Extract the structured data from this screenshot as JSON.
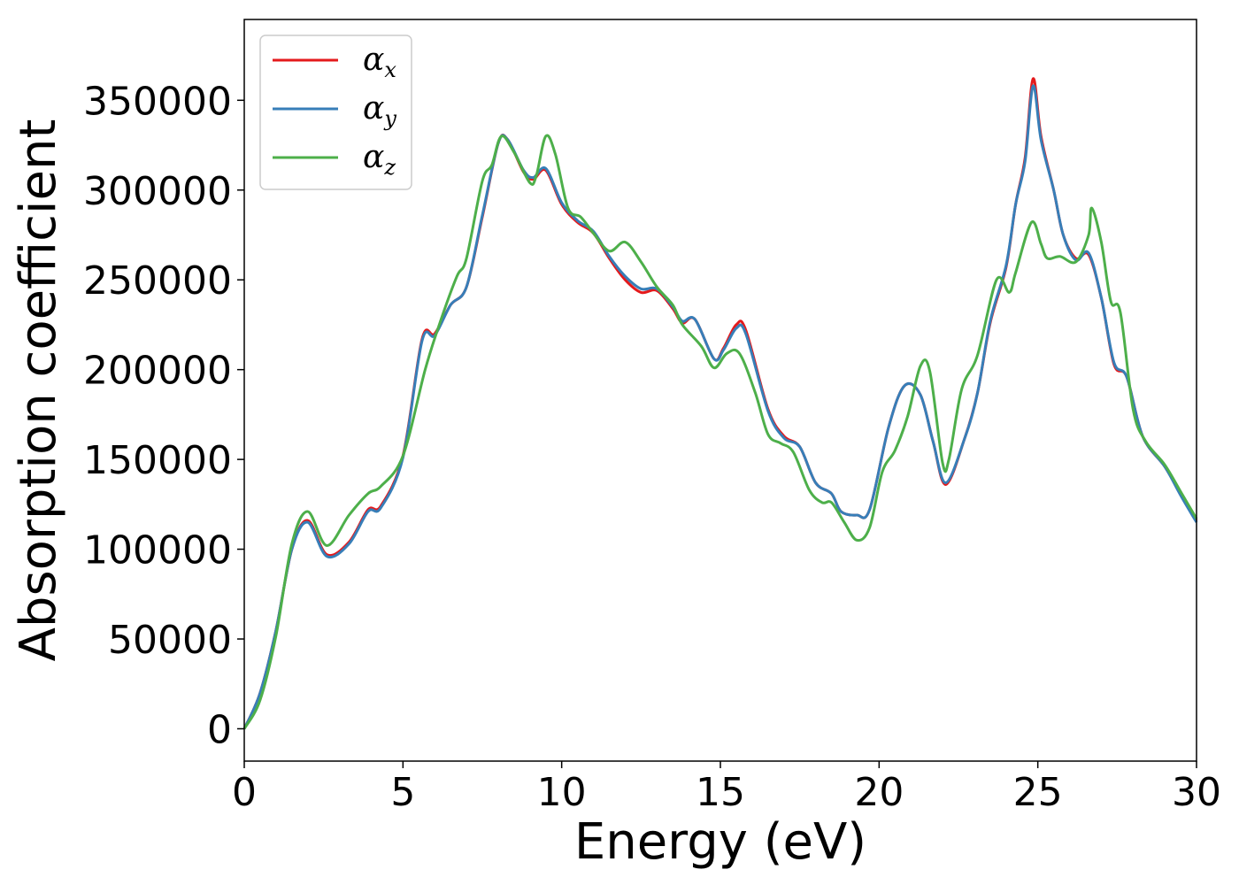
{
  "chart_data": {
    "type": "line",
    "title": "",
    "xlabel": "Energy (eV)",
    "ylabel": "Absorption coefficient",
    "xlim": [
      0,
      30
    ],
    "ylim": [
      -18000,
      395000
    ],
    "xticks": [
      0,
      5,
      10,
      15,
      20,
      25,
      30
    ],
    "xtick_labels": [
      "0",
      "5",
      "10",
      "15",
      "20",
      "25",
      "30"
    ],
    "yticks": [
      0,
      50000,
      100000,
      150000,
      200000,
      250000,
      300000,
      350000
    ],
    "ytick_labels": [
      "0",
      "50000",
      "100000",
      "150000",
      "200000",
      "250000",
      "300000",
      "350000"
    ],
    "grid": false,
    "legend_position": "top-left",
    "series": [
      {
        "name": "α",
        "subscript": "x",
        "color": "#e41a1c",
        "points": [
          [
            0,
            0
          ],
          [
            0.5,
            20000
          ],
          [
            1,
            55000
          ],
          [
            1.5,
            100000
          ],
          [
            2,
            116000
          ],
          [
            2.6,
            97000
          ],
          [
            3.3,
            104000
          ],
          [
            3.9,
            122000
          ],
          [
            4.3,
            124000
          ],
          [
            5,
            152000
          ],
          [
            5.6,
            217000
          ],
          [
            6,
            220000
          ],
          [
            6.5,
            236000
          ],
          [
            7,
            246000
          ],
          [
            7.5,
            285000
          ],
          [
            8,
            326000
          ],
          [
            8.3,
            328000
          ],
          [
            8.8,
            310000
          ],
          [
            9.1,
            306000
          ],
          [
            9.5,
            311000
          ],
          [
            10,
            292000
          ],
          [
            10.5,
            282000
          ],
          [
            11,
            276000
          ],
          [
            11.5,
            262000
          ],
          [
            12,
            250000
          ],
          [
            12.5,
            243000
          ],
          [
            13,
            244000
          ],
          [
            13.5,
            234000
          ],
          [
            13.8,
            226000
          ],
          [
            14.2,
            228000
          ],
          [
            14.8,
            206000
          ],
          [
            15.1,
            212000
          ],
          [
            15.5,
            225000
          ],
          [
            15.8,
            222000
          ],
          [
            16.5,
            178000
          ],
          [
            17,
            163000
          ],
          [
            17.5,
            157000
          ],
          [
            18,
            137000
          ],
          [
            18.5,
            131000
          ],
          [
            18.8,
            121000
          ],
          [
            19.3,
            119000
          ],
          [
            19.7,
            122000
          ],
          [
            20.3,
            168000
          ],
          [
            20.8,
            191000
          ],
          [
            21.3,
            186000
          ],
          [
            21.7,
            160000
          ],
          [
            22.1,
            136000
          ],
          [
            22.7,
            162000
          ],
          [
            23.1,
            187000
          ],
          [
            23.5,
            226000
          ],
          [
            24,
            257000
          ],
          [
            24.3,
            292000
          ],
          [
            24.6,
            318000
          ],
          [
            24.85,
            362000
          ],
          [
            25.1,
            330000
          ],
          [
            25.5,
            300000
          ],
          [
            25.8,
            275000
          ],
          [
            26.2,
            262000
          ],
          [
            26.6,
            264000
          ],
          [
            27,
            240000
          ],
          [
            27.4,
            203000
          ],
          [
            27.8,
            196000
          ],
          [
            28.3,
            163000
          ],
          [
            29,
            146000
          ],
          [
            29.5,
            131000
          ],
          [
            30,
            116000
          ]
        ]
      },
      {
        "name": "α",
        "subscript": "y",
        "color": "#377eb8",
        "points": [
          [
            0,
            0
          ],
          [
            0.5,
            20000
          ],
          [
            1,
            55000
          ],
          [
            1.5,
            100000
          ],
          [
            2,
            115000
          ],
          [
            2.6,
            96000
          ],
          [
            3.3,
            103000
          ],
          [
            3.9,
            121000
          ],
          [
            4.3,
            123000
          ],
          [
            5,
            151000
          ],
          [
            5.6,
            216000
          ],
          [
            6,
            219000
          ],
          [
            6.5,
            236000
          ],
          [
            7,
            246000
          ],
          [
            7.5,
            286000
          ],
          [
            8,
            326000
          ],
          [
            8.3,
            328000
          ],
          [
            8.8,
            311000
          ],
          [
            9.1,
            307000
          ],
          [
            9.5,
            312000
          ],
          [
            10,
            293000
          ],
          [
            10.5,
            283000
          ],
          [
            11,
            277000
          ],
          [
            11.5,
            263000
          ],
          [
            12,
            252000
          ],
          [
            12.5,
            245000
          ],
          [
            13,
            245000
          ],
          [
            13.5,
            235000
          ],
          [
            13.8,
            227000
          ],
          [
            14.2,
            228000
          ],
          [
            14.8,
            206000
          ],
          [
            15.1,
            211000
          ],
          [
            15.5,
            223000
          ],
          [
            15.8,
            220000
          ],
          [
            16.5,
            177000
          ],
          [
            17,
            162000
          ],
          [
            17.5,
            157000
          ],
          [
            18,
            137000
          ],
          [
            18.5,
            131000
          ],
          [
            18.8,
            121000
          ],
          [
            19.3,
            119000
          ],
          [
            19.7,
            122000
          ],
          [
            20.3,
            168000
          ],
          [
            20.8,
            191000
          ],
          [
            21.3,
            186000
          ],
          [
            21.7,
            160000
          ],
          [
            22.1,
            137000
          ],
          [
            22.7,
            162000
          ],
          [
            23.1,
            187000
          ],
          [
            23.5,
            227000
          ],
          [
            24,
            258000
          ],
          [
            24.3,
            292000
          ],
          [
            24.6,
            316000
          ],
          [
            24.85,
            358000
          ],
          [
            25.1,
            328000
          ],
          [
            25.5,
            300000
          ],
          [
            25.8,
            275000
          ],
          [
            26.2,
            261000
          ],
          [
            26.6,
            265000
          ],
          [
            27,
            240000
          ],
          [
            27.4,
            204000
          ],
          [
            27.8,
            196000
          ],
          [
            28.3,
            163000
          ],
          [
            29,
            146000
          ],
          [
            29.5,
            130000
          ],
          [
            30,
            115000
          ]
        ]
      },
      {
        "name": "α",
        "subscript": "z",
        "color": "#4daf4a",
        "points": [
          [
            0,
            0
          ],
          [
            0.5,
            16000
          ],
          [
            1,
            52000
          ],
          [
            1.5,
            103000
          ],
          [
            2,
            121000
          ],
          [
            2.6,
            102000
          ],
          [
            3.3,
            119000
          ],
          [
            3.9,
            131000
          ],
          [
            4.3,
            135000
          ],
          [
            5,
            152000
          ],
          [
            5.7,
            200000
          ],
          [
            6.2,
            228000
          ],
          [
            6.7,
            252000
          ],
          [
            7,
            262000
          ],
          [
            7.5,
            305000
          ],
          [
            7.8,
            314000
          ],
          [
            8.1,
            330000
          ],
          [
            8.5,
            321000
          ],
          [
            9,
            304000
          ],
          [
            9.2,
            308000
          ],
          [
            9.5,
            330000
          ],
          [
            9.8,
            320000
          ],
          [
            10.2,
            290000
          ],
          [
            10.6,
            285000
          ],
          [
            11,
            276000
          ],
          [
            11.5,
            266000
          ],
          [
            12,
            271000
          ],
          [
            12.5,
            260000
          ],
          [
            13,
            246000
          ],
          [
            13.5,
            236000
          ],
          [
            13.8,
            225000
          ],
          [
            14.4,
            213000
          ],
          [
            14.8,
            201000
          ],
          [
            15.2,
            209000
          ],
          [
            15.6,
            209000
          ],
          [
            16.1,
            187000
          ],
          [
            16.5,
            164000
          ],
          [
            16.9,
            159000
          ],
          [
            17.3,
            154000
          ],
          [
            17.8,
            133000
          ],
          [
            18.2,
            126000
          ],
          [
            18.5,
            126000
          ],
          [
            18.9,
            115000
          ],
          [
            19.3,
            105000
          ],
          [
            19.7,
            112000
          ],
          [
            20.1,
            143000
          ],
          [
            20.5,
            155000
          ],
          [
            20.9,
            174000
          ],
          [
            21.3,
            202000
          ],
          [
            21.6,
            199000
          ],
          [
            22,
            148000
          ],
          [
            22.2,
            150000
          ],
          [
            22.6,
            189000
          ],
          [
            23.1,
            208000
          ],
          [
            23.7,
            250000
          ],
          [
            24.1,
            243000
          ],
          [
            24.3,
            254000
          ],
          [
            24.8,
            282000
          ],
          [
            25.1,
            270000
          ],
          [
            25.3,
            262000
          ],
          [
            25.7,
            263000
          ],
          [
            26.2,
            260000
          ],
          [
            26.6,
            275000
          ],
          [
            26.7,
            290000
          ],
          [
            27,
            271000
          ],
          [
            27.3,
            238000
          ],
          [
            27.6,
            232000
          ],
          [
            28,
            178000
          ],
          [
            28.4,
            160000
          ],
          [
            29,
            147000
          ],
          [
            29.5,
            132000
          ],
          [
            30,
            117000
          ]
        ]
      }
    ]
  }
}
